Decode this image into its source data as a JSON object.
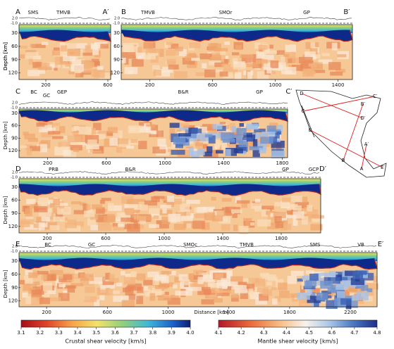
{
  "panels": [
    {
      "label": "A",
      "end_label": "A′",
      "regions": [
        "SMS",
        "TMVB"
      ],
      "xticks": [
        200,
        600
      ]
    },
    {
      "label": "B",
      "end_label": "B′",
      "regions": [
        "TMVB",
        "SMOr",
        "GP"
      ],
      "xticks": [
        200,
        600,
        1000,
        1400
      ]
    },
    {
      "label": "C",
      "end_label": "C′",
      "regions": [
        "BC",
        "GC",
        "GEP",
        "B&R",
        "GP"
      ],
      "xticks": [
        200,
        600,
        1000,
        1400,
        1800
      ]
    },
    {
      "label": "D",
      "end_label": "D′",
      "regions": [
        "PRB",
        "B&R",
        "GP",
        "GCP"
      ],
      "xticks": [
        200,
        600,
        1000,
        1400,
        1800
      ]
    },
    {
      "label": "E",
      "end_label": "E′",
      "regions": [
        "BC",
        "GC",
        "SMOc",
        "TMVB",
        "SMS",
        "VB"
      ],
      "xticks": [
        200,
        600,
        1000,
        1400,
        1800,
        2200
      ]
    }
  ],
  "depth_ticks": [
    "2.0",
    "-1.0",
    "30",
    "60",
    "90",
    "120"
  ],
  "depth_label": "Depth [km]",
  "distance_label": "Distance [km]",
  "map_labels": [
    "D",
    "C′",
    "C",
    "B′",
    "D′",
    "E",
    "A′",
    "B",
    "A",
    "E′"
  ],
  "colorbars": [
    {
      "label": "Crustal shear velocity [km/s]",
      "ticks": [
        "3.1",
        "3.2",
        "3.3",
        "3.4",
        "3.5",
        "3.6",
        "3.7",
        "3.8",
        "3.9",
        "4.0"
      ]
    },
    {
      "label": "Mantle shear velocity [km/s]",
      "ticks": [
        "4.1",
        "4.2",
        "4.3",
        "4.4",
        "4.5",
        "4.6",
        "4.7",
        "4.8"
      ]
    }
  ]
}
